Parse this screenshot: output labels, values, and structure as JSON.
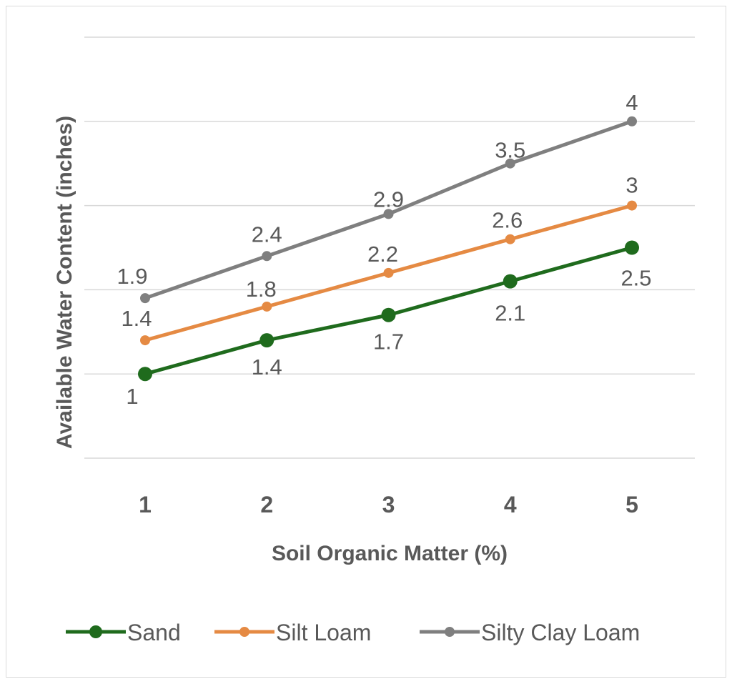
{
  "chart_data": {
    "type": "line",
    "title": "",
    "xlabel": "Soil Organic Matter (%)",
    "ylabel": "Available Water Content  (inches)",
    "x": [
      1,
      2,
      3,
      4,
      5
    ],
    "x_tick_labels": [
      "1",
      "2",
      "3",
      "4",
      "5"
    ],
    "ylim": [
      0,
      5
    ],
    "y_gridlines": [
      0,
      1,
      2,
      3,
      4,
      5
    ],
    "grid": true,
    "legend_position": "bottom",
    "series": [
      {
        "name": "Sand",
        "values": [
          1,
          1.4,
          1.7,
          2.1,
          2.5
        ],
        "labels": [
          "1",
          "1.4",
          "1.7",
          "2.1",
          "2.5"
        ],
        "color": "#1f6b1d"
      },
      {
        "name": "Silt Loam",
        "values": [
          1.4,
          1.8,
          2.2,
          2.6,
          3
        ],
        "labels": [
          "1.4",
          "1.8",
          "2.2",
          "2.6",
          "3"
        ],
        "color": "#e58a43"
      },
      {
        "name": "Silty Clay Loam",
        "values": [
          1.9,
          2.4,
          2.9,
          3.5,
          4
        ],
        "labels": [
          "1.9",
          "2.4",
          "2.9",
          "3.5",
          "4"
        ],
        "color": "#7f7f7f"
      }
    ]
  }
}
